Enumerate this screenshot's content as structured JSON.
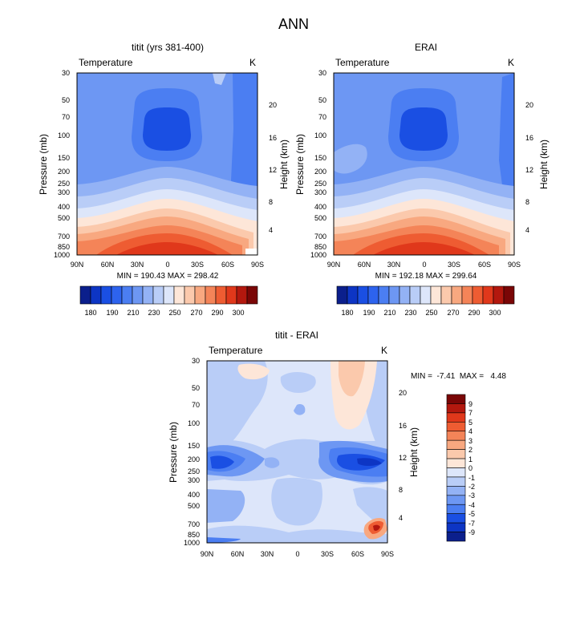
{
  "figure_title": "ANN",
  "chart_data": [
    {
      "type": "heatmap",
      "id": "model",
      "title": "titit (yrs 381-400)",
      "left_label": "Temperature",
      "right_label": "K",
      "xlabel": "",
      "ylabel": "Pressure (mb)",
      "y2label": "Height (km)",
      "x_ticks": [
        "90N",
        "60N",
        "30N",
        "0",
        "30S",
        "60S",
        "90S"
      ],
      "y_ticks": [
        "30",
        "50",
        "70",
        "100",
        "150",
        "200",
        "250",
        "300",
        "400",
        "500",
        "700",
        "850",
        "1000"
      ],
      "y2_ticks": [
        "20",
        "16",
        "12",
        "8",
        "4"
      ],
      "stats": "MIN = 190.43  MAX = 298.42",
      "min": 190.43,
      "max": 298.42,
      "colorbar_labels": [
        "180",
        "190",
        "210",
        "230",
        "250",
        "270",
        "290",
        "300"
      ],
      "unit": "K"
    },
    {
      "type": "heatmap",
      "id": "obs",
      "title": "ERAI",
      "left_label": "Temperature",
      "right_label": "K",
      "xlabel": "",
      "ylabel": "Pressure (mb)",
      "y2label": "Height (km)",
      "x_ticks": [
        "90N",
        "60N",
        "30N",
        "0",
        "30S",
        "60S",
        "90S"
      ],
      "y_ticks": [
        "30",
        "50",
        "70",
        "100",
        "150",
        "200",
        "250",
        "300",
        "400",
        "500",
        "700",
        "850",
        "1000"
      ],
      "y2_ticks": [
        "20",
        "16",
        "12",
        "8",
        "4"
      ],
      "stats": "MIN = 192.18  MAX = 299.64",
      "min": 192.18,
      "max": 299.64,
      "colorbar_labels": [
        "180",
        "190",
        "210",
        "230",
        "250",
        "270",
        "290",
        "300"
      ],
      "unit": "K"
    },
    {
      "type": "heatmap",
      "id": "diff",
      "title": "titit - ERAI",
      "left_label": "Temperature",
      "right_label": "K",
      "xlabel": "",
      "ylabel": "Pressure (mb)",
      "y2label": "Height (km)",
      "x_ticks": [
        "90N",
        "60N",
        "30N",
        "0",
        "30S",
        "60S",
        "90S"
      ],
      "y_ticks": [
        "30",
        "50",
        "70",
        "100",
        "150",
        "200",
        "250",
        "300",
        "400",
        "500",
        "700",
        "850",
        "1000"
      ],
      "y2_ticks": [
        "20",
        "16",
        "12",
        "8",
        "4"
      ],
      "stats": "MIN =  -7.41  MAX =   4.48",
      "min": -7.41,
      "max": 4.48,
      "colorbar_labels": [
        "9",
        "7",
        "5",
        "4",
        "3",
        "2",
        "1",
        "0",
        "-1",
        "-2",
        "-3",
        "-4",
        "-5",
        "-7",
        "-9"
      ],
      "unit": "K"
    }
  ],
  "colors": {
    "abs_scale": [
      "#0b1f8c",
      "#0d35c4",
      "#1a4fe3",
      "#2d63ee",
      "#4b7ef2",
      "#6d97f3",
      "#93b2f5",
      "#b9cdf7",
      "#dde6fa",
      "#fde6d8",
      "#fbc9ac",
      "#f8a880",
      "#f48458",
      "#ee5c32",
      "#e0381b",
      "#b3180e",
      "#7a0606"
    ],
    "diff_scale": [
      "#7a0606",
      "#b3180e",
      "#e0381b",
      "#ee5c32",
      "#f48458",
      "#f8a880",
      "#fbc9ac",
      "#fde6d8",
      "#dde6fa",
      "#b9cdf7",
      "#93b2f5",
      "#6d97f3",
      "#4b7ef2",
      "#1a4fe3",
      "#0d35c4",
      "#0b1f8c"
    ]
  }
}
